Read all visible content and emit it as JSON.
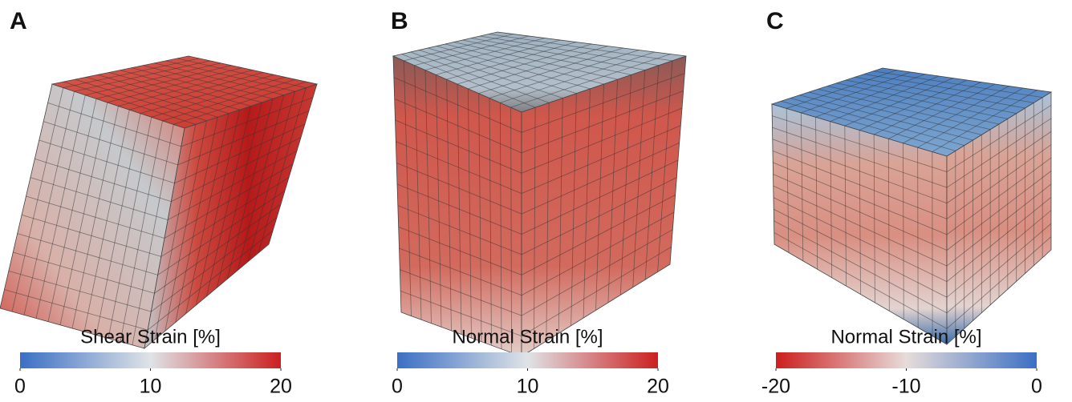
{
  "panels": [
    {
      "label": "A",
      "colorbar": {
        "title": "Shear Strain [%]",
        "lim": [
          0,
          20
        ],
        "ticks": [
          0,
          10,
          20
        ],
        "colors": [
          "#3b6fc4",
          "#dfe3e6",
          "#cc1f1f"
        ]
      }
    },
    {
      "label": "B",
      "colorbar": {
        "title": "Normal Strain [%]",
        "lim": [
          0,
          20
        ],
        "ticks": [
          0,
          10,
          20
        ],
        "colors": [
          "#3b6fc4",
          "#dfe3e6",
          "#cc1f1f"
        ]
      }
    },
    {
      "label": "C",
      "colorbar": {
        "title": "Normal Strain [%]",
        "lim": [
          -20,
          0
        ],
        "ticks": [
          -20,
          -10,
          0
        ],
        "colors": [
          "#cc1f1f",
          "#e6dcda",
          "#3b6fc4"
        ]
      }
    }
  ]
}
